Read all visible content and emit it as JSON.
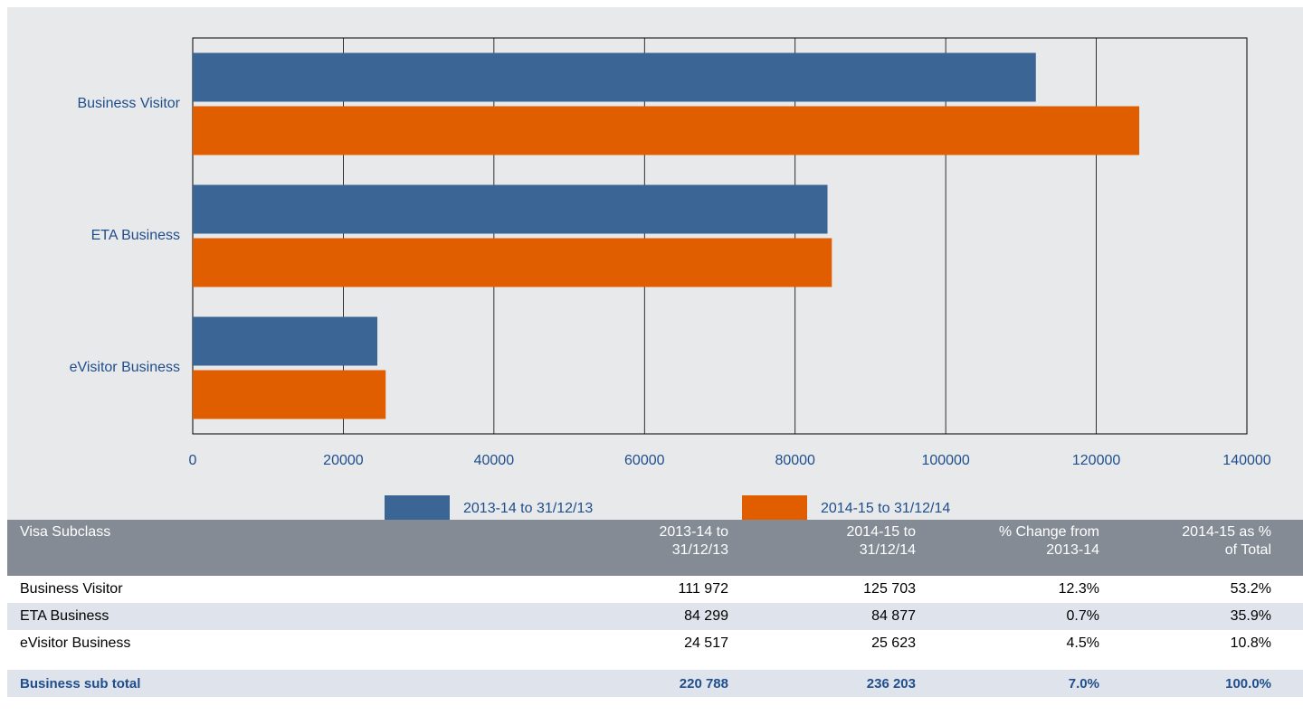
{
  "chart_data": {
    "type": "barh",
    "categories": [
      "Business Visitor",
      "ETA Business",
      "eVisitor Business"
    ],
    "series": [
      {
        "name": "2013-14 to 31/12/13",
        "color": "#3b6594",
        "values": [
          111972,
          84299,
          24517
        ]
      },
      {
        "name": "2014-15 to 31/12/14",
        "color": "#e05e00",
        "values": [
          125703,
          84877,
          25623
        ]
      }
    ],
    "xlim": [
      0,
      140000
    ],
    "xticks": [
      0,
      20000,
      40000,
      60000,
      80000,
      100000,
      120000,
      140000
    ],
    "grid": true
  },
  "table": {
    "columns": [
      "Visa Subclass",
      "2013-14 to 31/12/13",
      "2014-15 to 31/12/14",
      "% Change from 2013-14",
      "2014-15 as % of Total"
    ],
    "rows": [
      [
        "Business Visitor",
        "111 972",
        "125 703",
        "12.3%",
        "53.2%"
      ],
      [
        "ETA Business",
        "84 299",
        "84 877",
        "0.7%",
        "35.9%"
      ],
      [
        "eVisitor Business",
        "24 517",
        "25 623",
        "4.5%",
        "10.8%"
      ]
    ],
    "total": [
      "Business sub total",
      "220 788",
      "236 203",
      "7.0%",
      "100.0%"
    ]
  }
}
